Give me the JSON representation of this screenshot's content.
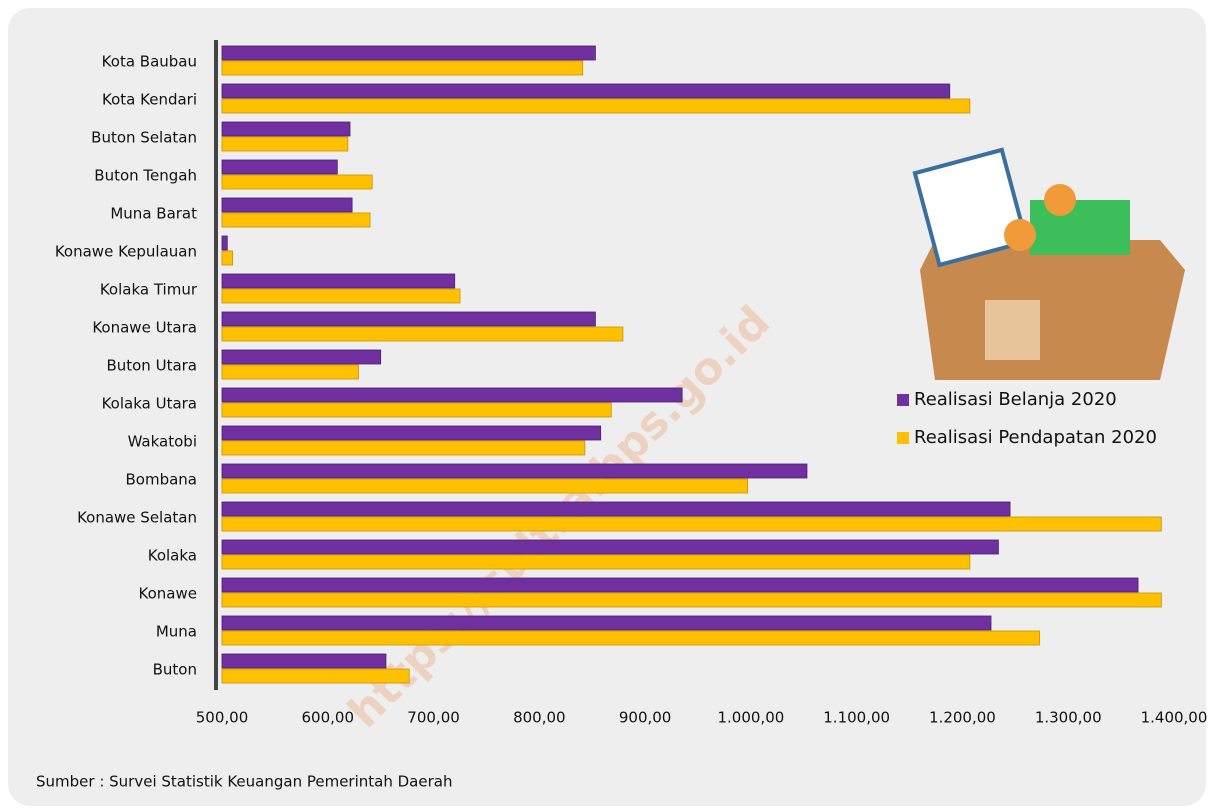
{
  "chart_data": {
    "type": "barh",
    "categories": [
      "Kota Baubau",
      "Kota Kendari",
      "Buton Selatan",
      "Buton Tengah",
      "Muna Barat",
      "Konawe Kepulauan",
      "Kolaka Timur",
      "Konawe Utara",
      "Buton Utara",
      "Kolaka Utara",
      "Wakatobi",
      "Bombana",
      "Konawe Selatan",
      "Kolaka",
      "Konawe",
      "Muna",
      "Buton"
    ],
    "series": [
      {
        "name": "Realisasi Belanja 2020",
        "color": "#7030a0",
        "values": [
          853,
          1188,
          621,
          609,
          623,
          505,
          720,
          853,
          650,
          935,
          858,
          1053,
          1245,
          1234,
          1366,
          1227,
          655
        ]
      },
      {
        "name": "Realisasi Pendapatan 2020",
        "color": "#ffc000",
        "values": [
          841,
          1207,
          619,
          642,
          640,
          510,
          725,
          879,
          629,
          868,
          843,
          997,
          1388,
          1207,
          1388,
          1273,
          677
        ]
      }
    ],
    "xlim": [
      500,
      1400
    ],
    "xticks": [
      {
        "value": 500,
        "label": "500,00"
      },
      {
        "value": 600,
        "label": "600,00"
      },
      {
        "value": 700,
        "label": "700,00"
      },
      {
        "value": 800,
        "label": "800,00"
      },
      {
        "value": 900,
        "label": "900,00"
      },
      {
        "value": 1000,
        "label": "1.000,00"
      },
      {
        "value": 1100,
        "label": "1.100,00"
      },
      {
        "value": 1200,
        "label": "1.200,00"
      },
      {
        "value": 1300,
        "label": "1.300,00"
      },
      {
        "value": 1400,
        "label": "1.400,00"
      }
    ],
    "legend": "right",
    "source": "Sumber : Survei Statistik Keuangan Pemerintah Daerah",
    "watermark": "https://sultra.bps.go.id"
  }
}
